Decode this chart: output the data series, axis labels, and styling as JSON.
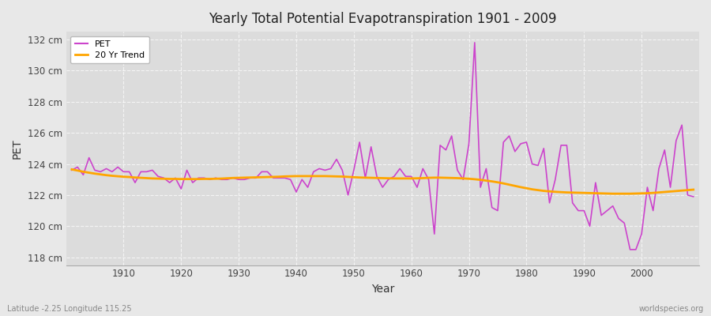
{
  "title": "Yearly Total Potential Evapotranspiration 1901 - 2009",
  "xlabel": "Year",
  "ylabel": "PET",
  "subtitle_left": "Latitude -2.25 Longitude 115.25",
  "subtitle_right": "worldspecies.org",
  "pet_color": "#cc44cc",
  "trend_color": "#ffa500",
  "fig_bg_color": "#e8e8e8",
  "plot_bg_color": "#dcdcdc",
  "grid_color": "#ffffff",
  "ylim": [
    117.5,
    132.5
  ],
  "yticks": [
    118,
    120,
    122,
    124,
    126,
    128,
    130,
    132
  ],
  "xlim": [
    1900,
    2010
  ],
  "xticks": [
    1910,
    1920,
    1930,
    1940,
    1950,
    1960,
    1970,
    1980,
    1990,
    2000
  ],
  "years": [
    1901,
    1902,
    1903,
    1904,
    1905,
    1906,
    1907,
    1908,
    1909,
    1910,
    1911,
    1912,
    1913,
    1914,
    1915,
    1916,
    1917,
    1918,
    1919,
    1920,
    1921,
    1922,
    1923,
    1924,
    1925,
    1926,
    1927,
    1928,
    1929,
    1930,
    1931,
    1932,
    1933,
    1934,
    1935,
    1936,
    1937,
    1938,
    1939,
    1940,
    1941,
    1942,
    1943,
    1944,
    1945,
    1946,
    1947,
    1948,
    1949,
    1950,
    1951,
    1952,
    1953,
    1954,
    1955,
    1956,
    1957,
    1958,
    1959,
    1960,
    1961,
    1962,
    1963,
    1964,
    1965,
    1966,
    1967,
    1968,
    1969,
    1970,
    1971,
    1972,
    1973,
    1974,
    1975,
    1976,
    1977,
    1978,
    1979,
    1980,
    1981,
    1982,
    1983,
    1984,
    1985,
    1986,
    1987,
    1988,
    1989,
    1990,
    1991,
    1992,
    1993,
    1994,
    1995,
    1996,
    1997,
    1998,
    1999,
    2000,
    2001,
    2002,
    2003,
    2004,
    2005,
    2006,
    2007,
    2008,
    2009
  ],
  "pet_values": [
    123.6,
    123.8,
    123.3,
    124.4,
    123.6,
    123.5,
    123.7,
    123.5,
    123.8,
    123.5,
    123.5,
    122.8,
    123.5,
    123.5,
    123.6,
    123.2,
    123.1,
    122.8,
    123.1,
    122.4,
    123.6,
    122.8,
    123.1,
    123.1,
    123.0,
    123.1,
    123.0,
    123.0,
    123.1,
    123.0,
    123.0,
    123.1,
    123.1,
    123.5,
    123.5,
    123.1,
    123.1,
    123.1,
    123.0,
    122.2,
    123.0,
    122.5,
    123.5,
    123.7,
    123.6,
    123.7,
    124.3,
    123.6,
    122.0,
    123.6,
    125.4,
    123.1,
    125.1,
    123.2,
    122.5,
    123.0,
    123.2,
    123.7,
    123.2,
    123.2,
    122.5,
    123.7,
    123.0,
    119.5,
    125.2,
    124.9,
    125.8,
    123.6,
    123.0,
    125.3,
    131.8,
    122.5,
    123.7,
    121.2,
    121.0,
    125.4,
    125.8,
    124.8,
    125.3,
    125.4,
    124.0,
    123.9,
    125.0,
    121.5,
    123.0,
    125.2,
    125.2,
    121.5,
    121.0,
    121.0,
    120.0,
    122.8,
    120.7,
    121.0,
    121.3,
    120.5,
    120.2,
    118.5,
    118.5,
    119.5,
    122.5,
    121.0,
    123.7,
    124.9,
    122.5,
    125.5,
    126.5,
    122.0,
    121.9
  ],
  "trend_values": [
    123.65,
    123.58,
    123.5,
    123.44,
    123.38,
    123.33,
    123.28,
    123.24,
    123.21,
    123.18,
    123.16,
    123.13,
    123.11,
    123.09,
    123.07,
    123.06,
    123.05,
    123.04,
    123.04,
    123.03,
    123.03,
    123.03,
    123.03,
    123.04,
    123.04,
    123.05,
    123.06,
    123.08,
    123.1,
    123.11,
    123.12,
    123.13,
    123.14,
    123.15,
    123.16,
    123.17,
    123.18,
    123.2,
    123.21,
    123.22,
    123.22,
    123.22,
    123.22,
    123.22,
    123.22,
    123.21,
    123.2,
    123.19,
    123.17,
    123.15,
    123.13,
    123.12,
    123.11,
    123.1,
    123.09,
    123.08,
    123.07,
    123.07,
    123.07,
    123.07,
    123.08,
    123.09,
    123.11,
    123.12,
    123.12,
    123.11,
    123.1,
    123.09,
    123.07,
    123.05,
    123.02,
    122.98,
    122.93,
    122.88,
    122.82,
    122.75,
    122.67,
    122.59,
    122.51,
    122.44,
    122.37,
    122.32,
    122.27,
    122.24,
    122.21,
    122.19,
    122.17,
    122.16,
    122.15,
    122.14,
    122.13,
    122.12,
    122.11,
    122.1,
    122.09,
    122.09,
    122.09,
    122.09,
    122.1,
    122.11,
    122.12,
    122.14,
    122.17,
    122.2,
    122.23,
    122.26,
    122.29,
    122.32,
    122.35
  ]
}
